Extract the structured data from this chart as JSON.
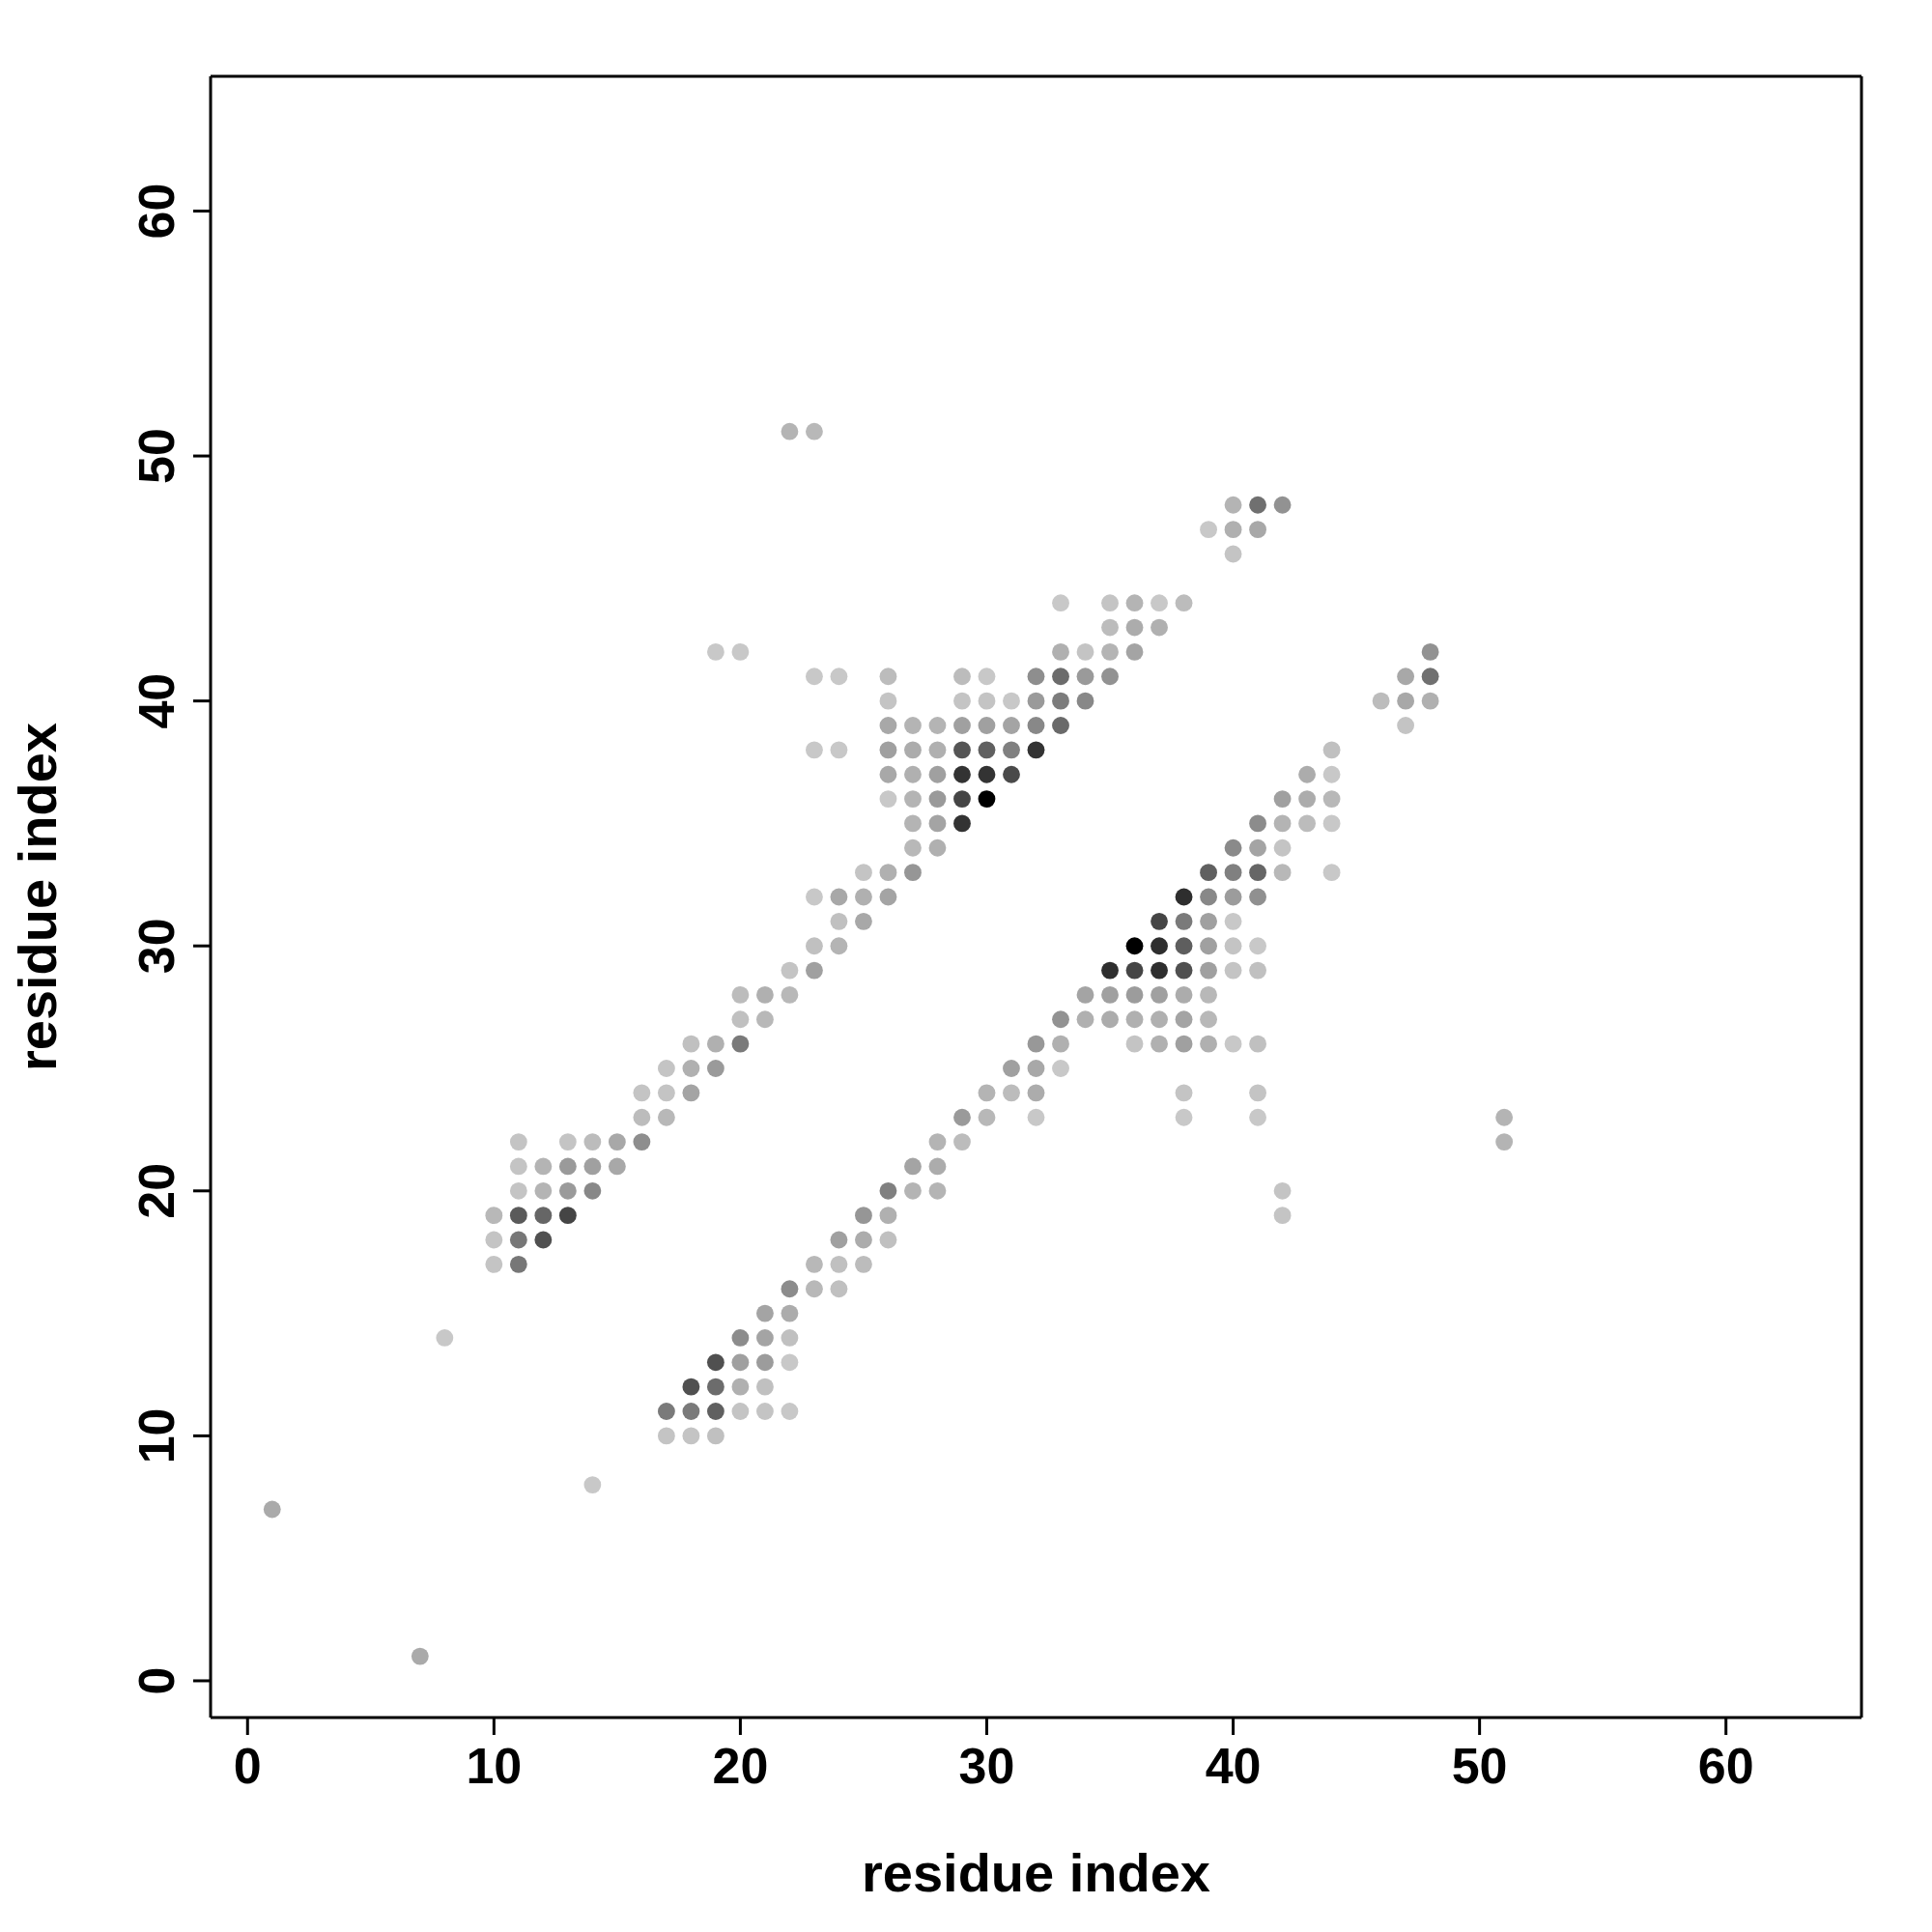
{
  "chart_data": {
    "type": "scatter",
    "xlabel": "residue index",
    "ylabel": "residue index",
    "xlim": [
      -1.5,
      65.5
    ],
    "ylim": [
      -1.5,
      65.5
    ],
    "xticks": [
      0,
      10,
      20,
      30,
      40,
      50,
      60
    ],
    "yticks": [
      0,
      10,
      20,
      30,
      40,
      50,
      60
    ],
    "grid": false,
    "legend": false,
    "marker": "circle",
    "series": [
      {
        "x": [
          1,
          7,
          8,
          14,
          10,
          11,
          10,
          11,
          12,
          10,
          11,
          12,
          13,
          11,
          12,
          13,
          14,
          11,
          12,
          13,
          14,
          15,
          11,
          13,
          14,
          15,
          16,
          16,
          17,
          29,
          30,
          32,
          38,
          41,
          51,
          16,
          17,
          18,
          30,
          31,
          32,
          38,
          41,
          28,
          29,
          51,
          27,
          28,
          26,
          27,
          28,
          42,
          25,
          26,
          42,
          24,
          25,
          26,
          23,
          24,
          25,
          22,
          23,
          24,
          21,
          22,
          20,
          21,
          22,
          19,
          20,
          21,
          22,
          18,
          19,
          20,
          21,
          17,
          18,
          19,
          20,
          21,
          22,
          17,
          18,
          19,
          17,
          18,
          19,
          31,
          32,
          33,
          18,
          19,
          20,
          32,
          33,
          36,
          37,
          38,
          39,
          40,
          41,
          20,
          21,
          33,
          34,
          35,
          36,
          37,
          38,
          39,
          20,
          21,
          22,
          34,
          35,
          36,
          37,
          38,
          39,
          22,
          23,
          35,
          36,
          37,
          38,
          39,
          40,
          41,
          23,
          24,
          36,
          37,
          38,
          39,
          40,
          41,
          24,
          25,
          37,
          38,
          39,
          40,
          23,
          24,
          25,
          26,
          38,
          39,
          40,
          41,
          25,
          26,
          27,
          39,
          40,
          41,
          42,
          44,
          27,
          28,
          40,
          41,
          42,
          27,
          28,
          29,
          41,
          42,
          43,
          44,
          26,
          27,
          28,
          29,
          30,
          42,
          43,
          44,
          26,
          27,
          28,
          29,
          30,
          31,
          43,
          44,
          23,
          24,
          26,
          27,
          28,
          29,
          30,
          31,
          32,
          44,
          26,
          27,
          28,
          29,
          30,
          31,
          32,
          33,
          47,
          26,
          29,
          30,
          31,
          32,
          33,
          34,
          46,
          47,
          48,
          23,
          24,
          26,
          29,
          30,
          32,
          33,
          34,
          35,
          47,
          48,
          19,
          20,
          33,
          34,
          35,
          36,
          48,
          35,
          36,
          37,
          33,
          35,
          36,
          37,
          38,
          40,
          39,
          40,
          41,
          40,
          41,
          42,
          22,
          23
        ],
        "values": [
          7,
          1,
          14,
          8,
          17,
          17,
          18,
          18,
          18,
          19,
          19,
          19,
          19,
          20,
          20,
          20,
          20,
          21,
          21,
          21,
          21,
          21,
          22,
          22,
          22,
          22,
          22,
          23,
          23,
          23,
          23,
          23,
          23,
          23,
          23,
          24,
          24,
          24,
          24,
          24,
          24,
          24,
          24,
          22,
          22,
          22,
          21,
          21,
          20,
          20,
          20,
          20,
          19,
          19,
          19,
          18,
          18,
          18,
          17,
          17,
          17,
          16,
          16,
          16,
          15,
          15,
          14,
          14,
          14,
          13,
          13,
          13,
          13,
          12,
          12,
          12,
          12,
          11,
          11,
          11,
          11,
          11,
          11,
          10,
          10,
          10,
          25,
          25,
          25,
          25,
          25,
          25,
          26,
          26,
          26,
          26,
          26,
          26,
          26,
          26,
          26,
          26,
          26,
          27,
          27,
          27,
          27,
          27,
          27,
          27,
          27,
          27,
          28,
          28,
          28,
          28,
          28,
          28,
          28,
          28,
          28,
          29,
          29,
          29,
          29,
          29,
          29,
          29,
          29,
          29,
          30,
          30,
          30,
          30,
          30,
          30,
          30,
          30,
          31,
          31,
          31,
          31,
          31,
          31,
          32,
          32,
          32,
          32,
          32,
          32,
          32,
          32,
          33,
          33,
          33,
          33,
          33,
          33,
          33,
          33,
          34,
          34,
          34,
          34,
          34,
          35,
          35,
          35,
          35,
          35,
          35,
          35,
          36,
          36,
          36,
          36,
          36,
          36,
          36,
          36,
          37,
          37,
          37,
          37,
          37,
          37,
          37,
          37,
          38,
          38,
          38,
          38,
          38,
          38,
          38,
          38,
          38,
          38,
          39,
          39,
          39,
          39,
          39,
          39,
          39,
          39,
          39,
          40,
          40,
          40,
          40,
          40,
          40,
          40,
          40,
          40,
          40,
          41,
          41,
          41,
          41,
          41,
          41,
          41,
          41,
          41,
          41,
          41,
          42,
          42,
          42,
          42,
          42,
          42,
          42,
          43,
          43,
          43,
          44,
          44,
          44,
          44,
          44,
          46,
          47,
          47,
          47,
          48,
          48,
          48,
          51,
          51
        ],
        "colors": [
          "#aaaaaa",
          "#aaaaaa",
          "#c8c8c8",
          "#c8c8c8",
          "#c4c4c4",
          "#777777",
          "#c4c4c4",
          "#777777",
          "#505050",
          "#b8b8b8",
          "#5a5a5a",
          "#666666",
          "#454545",
          "#c4c4c4",
          "#b4b4b4",
          "#9a9a9a",
          "#888888",
          "#c4c4c4",
          "#b4b4b4",
          "#9a9a9a",
          "#a0a0a0",
          "#a8a8a8",
          "#c4c4c4",
          "#c4c4c4",
          "#bcbcbc",
          "#a8a8a8",
          "#8e8e8e",
          "#bcbcbc",
          "#b8b8b8",
          "#9a9a9a",
          "#b8b8b8",
          "#c8c8c8",
          "#c8c8c8",
          "#c8c8c8",
          "#b4b4b4",
          "#c4c4c4",
          "#c4c4c4",
          "#a4a4a4",
          "#b4b4b4",
          "#bcbcbc",
          "#acacac",
          "#c4c4c4",
          "#c4c4c4",
          "#b4b4b4",
          "#bcbcbc",
          "#b4b4b4",
          "#a4a4a4",
          "#acacac",
          "#808080",
          "#b4b4b4",
          "#b4b4b4",
          "#c4c4c4",
          "#969696",
          "#b0b0b0",
          "#c4c4c4",
          "#a0a0a0",
          "#acacac",
          "#c0c0c0",
          "#b8b8b8",
          "#c0c0c0",
          "#bcbcbc",
          "#8c8c8c",
          "#b8b8b8",
          "#c0c0c0",
          "#a4a4a4",
          "#acacac",
          "#8c8c8c",
          "#a4a4a4",
          "#c0c0c0",
          "#505050",
          "#a0a0a0",
          "#9c9c9c",
          "#c8c8c8",
          "#505050",
          "#6c6c6c",
          "#b0b0b0",
          "#c0c0c0",
          "#7a7a7a",
          "#7a7a7a",
          "#606060",
          "#c4c4c4",
          "#c4c4c4",
          "#c8c8c8",
          "#c4c4c4",
          "#c4c4c4",
          "#c0c0c0",
          "#c4c4c4",
          "#b0b0b0",
          "#9a9a9a",
          "#a0a0a0",
          "#a8a8a8",
          "#c8c8c8",
          "#c0c0c0",
          "#b0b0b0",
          "#7a7a7a",
          "#989898",
          "#b0b0b0",
          "#c4c4c4",
          "#b0b0b0",
          "#a0a0a0",
          "#b0b0b0",
          "#c8c8c8",
          "#c0c0c0",
          "#c0c0c0",
          "#b8b8b8",
          "#929292",
          "#b0b0b0",
          "#acacac",
          "#b0b0b0",
          "#b0b0b0",
          "#a4a4a4",
          "#b8b8b8",
          "#bcbcbc",
          "#b0b0b0",
          "#b8b8b8",
          "#a4a4a4",
          "#a0a0a0",
          "#9c9c9c",
          "#a0a0a0",
          "#acacac",
          "#b8b8b8",
          "#c4c4c4",
          "#a0a0a0",
          "#2e2e2e",
          "#454545",
          "#2e2e2e",
          "#505050",
          "#a0a0a0",
          "#c4c4c4",
          "#c0c0c0",
          "#c0c0c0",
          "#b4b4b4",
          "#000000",
          "#2e2e2e",
          "#5e5e5e",
          "#a0a0a0",
          "#c4c4c4",
          "#c8c8c8",
          "#c0c0c0",
          "#a8a8a8",
          "#454545",
          "#7a7a7a",
          "#a0a0a0",
          "#c8c8c8",
          "#c8c8c8",
          "#a8a8a8",
          "#b0b0b0",
          "#a4a4a4",
          "#2e2e2e",
          "#888888",
          "#9c9c9c",
          "#909090",
          "#c4c4c4",
          "#b0b0b0",
          "#969696",
          "#606060",
          "#808080",
          "#666666",
          "#b8b8b8",
          "#c8c8c8",
          "#b8b8b8",
          "#b0b0b0",
          "#8a8a8a",
          "#a4a4a4",
          "#c4c4c4",
          "#b4b4b4",
          "#a4a4a4",
          "#333333",
          "#8c8c8c",
          "#b4b4b4",
          "#bcbcbc",
          "#c8c8c8",
          "#c8c8c8",
          "#b4b4b4",
          "#9a9a9a",
          "#454545",
          "#000000",
          "#a0a0a0",
          "#acacac",
          "#b8b8b8",
          "#a8a8a8",
          "#b0b0b0",
          "#a0a0a0",
          "#333333",
          "#333333",
          "#4a4a4a",
          "#acacac",
          "#c8c8c8",
          "#c8c8c8",
          "#c8c8c8",
          "#a0a0a0",
          "#acacac",
          "#b0b0b0",
          "#555555",
          "#606060",
          "#808080",
          "#333333",
          "#c0c0c0",
          "#a8a8a8",
          "#b4b4b4",
          "#b4b4b4",
          "#a0a0a0",
          "#a0a0a0",
          "#a4a4a4",
          "#888888",
          "#6a6a6a",
          "#c4c4c4",
          "#c4c4c4",
          "#c4c4c4",
          "#c4c4c4",
          "#c8c8c8",
          "#9a9a9a",
          "#7c7c7c",
          "#888888",
          "#bcbcbc",
          "#a8a8a8",
          "#b0b0b0",
          "#c8c8c8",
          "#c8c8c8",
          "#bcbcbc",
          "#bcbcbc",
          "#c8c8c8",
          "#8e8e8e",
          "#6c6c6c",
          "#9a9a9a",
          "#929292",
          "#a8a8a8",
          "#707070",
          "#c8c8c8",
          "#c8c8c8",
          "#b0b0b0",
          "#c4c4c4",
          "#b4b4b4",
          "#a4a4a4",
          "#929292",
          "#bcbcbc",
          "#acacac",
          "#b0b0b0",
          "#c8c8c8",
          "#c4c4c4",
          "#b4b4b4",
          "#c8c8c8",
          "#bcbcbc",
          "#c4c4c4",
          "#c8c8c8",
          "#b0b0b0",
          "#a8a8a8",
          "#b4b4b4",
          "#707070",
          "#929292",
          "#b4b4b4",
          "#b8b8b8"
        ]
      }
    ]
  }
}
